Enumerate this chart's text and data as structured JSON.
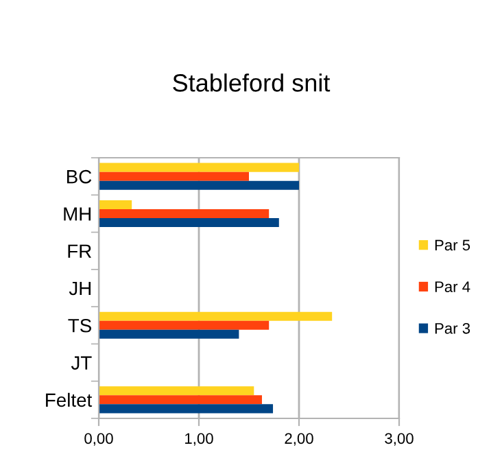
{
  "chart_data": {
    "type": "bar",
    "orientation": "horizontal",
    "title": "Stableford snit",
    "categories": [
      "BC",
      "MH",
      "FR",
      "JH",
      "TS",
      "JT",
      "Feltet"
    ],
    "series": [
      {
        "name": "Par 5",
        "color": "#ffd320",
        "values": [
          2.0,
          0.33,
          null,
          null,
          2.33,
          null,
          1.55
        ]
      },
      {
        "name": "Par 4",
        "color": "#ff420e",
        "values": [
          1.5,
          1.7,
          null,
          null,
          1.7,
          null,
          1.63
        ]
      },
      {
        "name": "Par 3",
        "color": "#004586",
        "values": [
          2.0,
          1.8,
          null,
          null,
          1.4,
          null,
          1.74
        ]
      }
    ],
    "xlim": [
      0,
      3
    ],
    "xticks": [
      {
        "value": 0,
        "label": "0,00"
      },
      {
        "value": 1,
        "label": "1,00"
      },
      {
        "value": 2,
        "label": "2,00"
      },
      {
        "value": 3,
        "label": "3,00"
      }
    ],
    "grid": "x",
    "legend": "right"
  }
}
